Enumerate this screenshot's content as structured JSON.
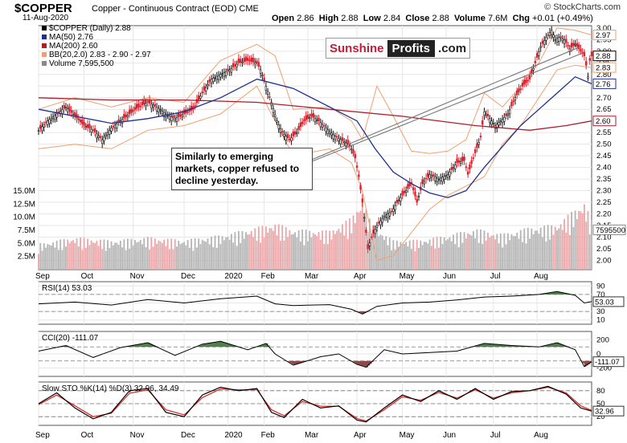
{
  "header": {
    "symbol": "$COPPER",
    "description": "Copper - Continuous Contract (EOD)  CME",
    "date": "11-Aug-2020",
    "open_label": "Open",
    "open": "2.86",
    "high_label": "High",
    "high": "2.88",
    "low_label": "Low",
    "low": "2.84",
    "close_label": "Close",
    "close": "2.88",
    "volume_label": "Volume",
    "volume": "7.6M",
    "chg_label": "Chg",
    "chg": "+0.01 (+0.49%)",
    "brand": "© StockCharts.com"
  },
  "logo": {
    "part1": "Sunshine",
    "part2": "Profits",
    "part3": ".com"
  },
  "annotation": "Similarly to emerging markets, copper refused to decline yesterday.",
  "colors": {
    "up": "#111111",
    "down": "#e0202c",
    "ma50": "#1f2f8f",
    "ma200": "#b01c2b",
    "bb": "#f0a070",
    "vol_down": "#e8a6a8",
    "vol_up": "#b4b4b4",
    "ind_pos": "#4f7f4a",
    "ind_neg": "#8a4a4a",
    "sto_d": "#e02020"
  },
  "chart_data": [
    {
      "type": "candlestick",
      "legend": [
        {
          "label": "$COPPER (Daily) 2.88",
          "color": "#000000"
        },
        {
          "label": "MA(50) 2.76",
          "color": "#1f2f8f"
        },
        {
          "label": "MA(200) 2.60",
          "color": "#b01c2b"
        },
        {
          "label": "BB(20,2.0) 2.83 - 2.90 - 2.97",
          "color": "#f0a070"
        },
        {
          "label": "Volume 7,595,500",
          "color": "#888888"
        }
      ],
      "x_ticks": [
        "Sep",
        "Oct",
        "Nov",
        "Dec",
        "2020",
        "Feb",
        "Mar",
        "Apr",
        "May",
        "Jun",
        "Jul",
        "Aug"
      ],
      "y_ticks": [
        "2.00",
        "2.05",
        "2.10",
        "2.15",
        "2.20",
        "2.25",
        "2.30",
        "2.35",
        "2.40",
        "2.45",
        "2.50",
        "2.55",
        "2.65",
        "2.70",
        "2.75",
        "2.80",
        "2.85",
        "2.90",
        "2.95",
        "3.00"
      ],
      "ylim": [
        1.96,
        3.01
      ],
      "vol_ticks": [
        "2.5M",
        "5.0M",
        "7.5M",
        "10.0M",
        "12.5M",
        "15.0M"
      ],
      "vol_range": [
        0,
        15
      ],
      "price_tags": [
        {
          "label": "2.97",
          "value": 2.97,
          "color": "#f0a070"
        },
        {
          "label": "2.88",
          "value": 2.88,
          "color": "#000000"
        },
        {
          "label": "2.83",
          "value": 2.83,
          "color": "#f0a070"
        },
        {
          "label": "2.76",
          "value": 2.76,
          "color": "#1f2f8f"
        },
        {
          "label": "2.60",
          "value": 2.6,
          "color": "#b01c2b"
        },
        {
          "label": "7595500",
          "value": 7.5955,
          "color": "#888888",
          "axis": "volume"
        }
      ],
      "close_path": [
        [
          0,
          2.56
        ],
        [
          5,
          2.6
        ],
        [
          10,
          2.63
        ],
        [
          15,
          2.66
        ],
        [
          20,
          2.62
        ],
        [
          25,
          2.58
        ],
        [
          30,
          2.56
        ],
        [
          35,
          2.52
        ],
        [
          40,
          2.57
        ],
        [
          45,
          2.6
        ],
        [
          50,
          2.63
        ],
        [
          55,
          2.66
        ],
        [
          60,
          2.68
        ],
        [
          65,
          2.66
        ],
        [
          70,
          2.63
        ],
        [
          75,
          2.61
        ],
        [
          80,
          2.63
        ],
        [
          85,
          2.65
        ],
        [
          90,
          2.72
        ],
        [
          95,
          2.78
        ],
        [
          100,
          2.8
        ],
        [
          105,
          2.82
        ],
        [
          110,
          2.85
        ],
        [
          115,
          2.86
        ],
        [
          120,
          2.85
        ],
        [
          122,
          2.82
        ],
        [
          125,
          2.75
        ],
        [
          128,
          2.68
        ],
        [
          131,
          2.6
        ],
        [
          134,
          2.55
        ],
        [
          138,
          2.52
        ],
        [
          142,
          2.55
        ],
        [
          146,
          2.6
        ],
        [
          150,
          2.62
        ],
        [
          154,
          2.6
        ],
        [
          158,
          2.57
        ],
        [
          162,
          2.54
        ],
        [
          166,
          2.52
        ],
        [
          170,
          2.5
        ],
        [
          172,
          2.48
        ],
        [
          174,
          2.44
        ],
        [
          176,
          2.36
        ],
        [
          178,
          2.25
        ],
        [
          180,
          2.12
        ],
        [
          181,
          2.05
        ],
        [
          183,
          2.1
        ],
        [
          186,
          2.15
        ],
        [
          190,
          2.19
        ],
        [
          194,
          2.21
        ],
        [
          198,
          2.26
        ],
        [
          202,
          2.3
        ],
        [
          205,
          2.33
        ],
        [
          208,
          2.25
        ],
        [
          211,
          2.33
        ],
        [
          215,
          2.37
        ],
        [
          220,
          2.35
        ],
        [
          225,
          2.37
        ],
        [
          230,
          2.42
        ],
        [
          234,
          2.43
        ],
        [
          236,
          2.37
        ],
        [
          239,
          2.44
        ],
        [
          243,
          2.53
        ],
        [
          245,
          2.64
        ],
        [
          248,
          2.61
        ],
        [
          251,
          2.58
        ],
        [
          254,
          2.6
        ],
        [
          258,
          2.63
        ],
        [
          262,
          2.7
        ],
        [
          266,
          2.75
        ],
        [
          270,
          2.78
        ],
        [
          273,
          2.85
        ],
        [
          276,
          2.92
        ],
        [
          279,
          2.96
        ],
        [
          282,
          2.99
        ],
        [
          284,
          2.95
        ],
        [
          286,
          2.96
        ],
        [
          289,
          2.95
        ],
        [
          292,
          2.91
        ],
        [
          295,
          2.93
        ],
        [
          298,
          2.9
        ],
        [
          300,
          2.88
        ],
        [
          301,
          2.84
        ],
        [
          302,
          2.79
        ],
        [
          303,
          2.86
        ],
        [
          304,
          2.88
        ]
      ],
      "ma50_path": [
        [
          0,
          2.65
        ],
        [
          20,
          2.62
        ],
        [
          40,
          2.59
        ],
        [
          60,
          2.61
        ],
        [
          80,
          2.64
        ],
        [
          100,
          2.7
        ],
        [
          120,
          2.78
        ],
        [
          140,
          2.74
        ],
        [
          160,
          2.66
        ],
        [
          175,
          2.6
        ],
        [
          185,
          2.48
        ],
        [
          195,
          2.38
        ],
        [
          205,
          2.33
        ],
        [
          215,
          2.29
        ],
        [
          225,
          2.27
        ],
        [
          235,
          2.3
        ],
        [
          245,
          2.4
        ],
        [
          255,
          2.49
        ],
        [
          265,
          2.58
        ],
        [
          275,
          2.65
        ],
        [
          285,
          2.72
        ],
        [
          295,
          2.79
        ],
        [
          304,
          2.76
        ]
      ],
      "ma200_path": [
        [
          0,
          2.7
        ],
        [
          40,
          2.69
        ],
        [
          80,
          2.69
        ],
        [
          120,
          2.68
        ],
        [
          160,
          2.65
        ],
        [
          200,
          2.62
        ],
        [
          240,
          2.58
        ],
        [
          270,
          2.56
        ],
        [
          290,
          2.58
        ],
        [
          304,
          2.6
        ]
      ],
      "bb_upper_path": [
        [
          0,
          2.65
        ],
        [
          20,
          2.7
        ],
        [
          40,
          2.66
        ],
        [
          60,
          2.7
        ],
        [
          80,
          2.68
        ],
        [
          100,
          2.86
        ],
        [
          120,
          2.93
        ],
        [
          130,
          2.88
        ],
        [
          140,
          2.65
        ],
        [
          160,
          2.66
        ],
        [
          172,
          2.6
        ],
        [
          178,
          2.52
        ],
        [
          186,
          2.75
        ],
        [
          195,
          2.62
        ],
        [
          205,
          2.47
        ],
        [
          215,
          2.46
        ],
        [
          225,
          2.47
        ],
        [
          235,
          2.52
        ],
        [
          245,
          2.72
        ],
        [
          255,
          2.66
        ],
        [
          265,
          2.75
        ],
        [
          275,
          2.85
        ],
        [
          285,
          3.0
        ],
        [
          295,
          2.99
        ],
        [
          304,
          2.97
        ]
      ],
      "bb_lower_path": [
        [
          0,
          2.48
        ],
        [
          20,
          2.5
        ],
        [
          40,
          2.48
        ],
        [
          60,
          2.56
        ],
        [
          80,
          2.58
        ],
        [
          100,
          2.63
        ],
        [
          120,
          2.75
        ],
        [
          130,
          2.6
        ],
        [
          140,
          2.45
        ],
        [
          160,
          2.48
        ],
        [
          172,
          2.42
        ],
        [
          178,
          2.3
        ],
        [
          186,
          2.0
        ],
        [
          195,
          2.02
        ],
        [
          205,
          2.12
        ],
        [
          215,
          2.22
        ],
        [
          225,
          2.28
        ],
        [
          235,
          2.32
        ],
        [
          245,
          2.36
        ],
        [
          255,
          2.5
        ],
        [
          265,
          2.58
        ],
        [
          275,
          2.7
        ],
        [
          285,
          2.82
        ],
        [
          295,
          2.84
        ],
        [
          304,
          2.83
        ]
      ],
      "volume_path": [
        [
          0,
          4.0
        ],
        [
          20,
          5.0
        ],
        [
          40,
          4.5
        ],
        [
          60,
          5.0
        ],
        [
          80,
          4.6
        ],
        [
          100,
          5.3
        ],
        [
          120,
          6.5
        ],
        [
          130,
          7.2
        ],
        [
          140,
          6.2
        ],
        [
          160,
          6.0
        ],
        [
          172,
          8.0
        ],
        [
          178,
          11.0
        ],
        [
          183,
          7.0
        ],
        [
          195,
          4.5
        ],
        [
          210,
          4.6
        ],
        [
          225,
          5.3
        ],
        [
          240,
          6.3
        ],
        [
          255,
          5.5
        ],
        [
          270,
          6.5
        ],
        [
          285,
          7.0
        ],
        [
          300,
          10.5
        ],
        [
          304,
          7.6
        ]
      ],
      "trendlines": [
        {
          "from": [
            134,
            2.38
          ],
          "to": [
            298,
            2.92
          ]
        },
        {
          "from": [
            134,
            2.375
          ],
          "to": [
            300,
            2.895
          ]
        }
      ]
    },
    {
      "type": "line",
      "label": "RSI(14) 53.03",
      "value_label": "53.03",
      "y_ticks": [
        "90",
        "70",
        "50",
        "30",
        "10"
      ],
      "ylim": [
        0,
        100
      ],
      "levels": [
        30,
        70
      ],
      "path": [
        [
          0,
          48
        ],
        [
          20,
          52
        ],
        [
          40,
          45
        ],
        [
          60,
          58
        ],
        [
          80,
          50
        ],
        [
          100,
          60
        ],
        [
          120,
          66
        ],
        [
          130,
          48
        ],
        [
          140,
          44
        ],
        [
          160,
          46
        ],
        [
          172,
          35
        ],
        [
          178,
          24
        ],
        [
          186,
          42
        ],
        [
          200,
          50
        ],
        [
          215,
          52
        ],
        [
          230,
          57
        ],
        [
          245,
          64
        ],
        [
          260,
          66
        ],
        [
          275,
          70
        ],
        [
          285,
          77
        ],
        [
          295,
          68
        ],
        [
          300,
          50
        ],
        [
          304,
          53
        ]
      ]
    },
    {
      "type": "line",
      "label": "CCI(20) -111.07",
      "value_label": "-111.07",
      "y_ticks": [
        "200",
        "0",
        "-200"
      ],
      "ylim": [
        -320,
        320
      ],
      "levels": [
        -100,
        100
      ],
      "path": [
        [
          0,
          40
        ],
        [
          15,
          120
        ],
        [
          30,
          -50
        ],
        [
          45,
          90
        ],
        [
          60,
          160
        ],
        [
          75,
          -20
        ],
        [
          90,
          140
        ],
        [
          100,
          180
        ],
        [
          115,
          60
        ],
        [
          125,
          150
        ],
        [
          130,
          0
        ],
        [
          140,
          -160
        ],
        [
          155,
          -40
        ],
        [
          165,
          0
        ],
        [
          175,
          -150
        ],
        [
          180,
          -190
        ],
        [
          190,
          60
        ],
        [
          200,
          0
        ],
        [
          215,
          20
        ],
        [
          230,
          40
        ],
        [
          245,
          150
        ],
        [
          260,
          120
        ],
        [
          275,
          100
        ],
        [
          285,
          160
        ],
        [
          295,
          60
        ],
        [
          300,
          -180
        ],
        [
          304,
          -111
        ]
      ]
    },
    {
      "type": "line",
      "label": "Slow STO %K(14) %D(3) 32.96, 34.49",
      "value_label": "32.96",
      "y_ticks": [
        "80",
        "50",
        "20"
      ],
      "ylim": [
        0,
        100
      ],
      "levels": [
        20,
        50,
        80
      ],
      "k_path": [
        [
          0,
          50
        ],
        [
          10,
          75
        ],
        [
          20,
          40
        ],
        [
          30,
          15
        ],
        [
          40,
          30
        ],
        [
          50,
          80
        ],
        [
          60,
          85
        ],
        [
          70,
          30
        ],
        [
          80,
          20
        ],
        [
          90,
          70
        ],
        [
          100,
          88
        ],
        [
          110,
          80
        ],
        [
          120,
          85
        ],
        [
          128,
          30
        ],
        [
          135,
          18
        ],
        [
          145,
          60
        ],
        [
          155,
          40
        ],
        [
          165,
          45
        ],
        [
          175,
          12
        ],
        [
          180,
          8
        ],
        [
          190,
          40
        ],
        [
          200,
          70
        ],
        [
          210,
          55
        ],
        [
          220,
          80
        ],
        [
          230,
          60
        ],
        [
          240,
          85
        ],
        [
          250,
          60
        ],
        [
          260,
          78
        ],
        [
          270,
          80
        ],
        [
          280,
          90
        ],
        [
          290,
          72
        ],
        [
          298,
          40
        ],
        [
          304,
          33
        ]
      ],
      "d_path": [
        [
          0,
          48
        ],
        [
          10,
          70
        ],
        [
          20,
          45
        ],
        [
          30,
          20
        ],
        [
          40,
          28
        ],
        [
          50,
          74
        ],
        [
          60,
          82
        ],
        [
          70,
          36
        ],
        [
          80,
          24
        ],
        [
          90,
          64
        ],
        [
          100,
          84
        ],
        [
          110,
          82
        ],
        [
          120,
          82
        ],
        [
          128,
          36
        ],
        [
          135,
          22
        ],
        [
          145,
          55
        ],
        [
          155,
          44
        ],
        [
          165,
          44
        ],
        [
          175,
          16
        ],
        [
          180,
          10
        ],
        [
          190,
          36
        ],
        [
          200,
          66
        ],
        [
          210,
          58
        ],
        [
          220,
          76
        ],
        [
          230,
          63
        ],
        [
          240,
          82
        ],
        [
          250,
          63
        ],
        [
          260,
          75
        ],
        [
          270,
          80
        ],
        [
          280,
          88
        ],
        [
          290,
          75
        ],
        [
          298,
          45
        ],
        [
          304,
          34.5
        ]
      ]
    }
  ]
}
